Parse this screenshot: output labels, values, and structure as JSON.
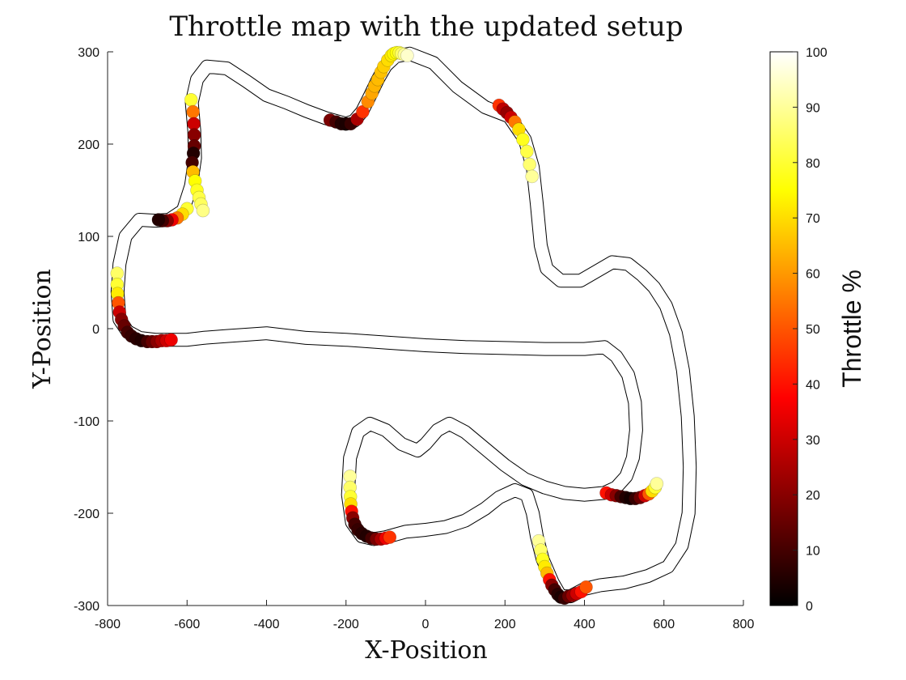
{
  "chart_data": {
    "type": "scatter",
    "title": "Throttle map with the updated setup",
    "xlabel": "X-Position",
    "ylabel": "Y-Position",
    "xlim": [
      -800,
      800
    ],
    "ylim": [
      -300,
      300
    ],
    "xticks": [
      -800,
      -600,
      -400,
      -200,
      0,
      200,
      400,
      600,
      800
    ],
    "yticks": [
      -300,
      -200,
      -100,
      0,
      100,
      200,
      300
    ],
    "grid": false,
    "colormap": "hot",
    "colorbar": {
      "label": "Throttle %",
      "range": [
        0,
        100
      ],
      "ticks": [
        0,
        10,
        20,
        30,
        40,
        50,
        60,
        70,
        80,
        90,
        100
      ]
    },
    "track_centerline": [
      [
        -40,
        298
      ],
      [
        20,
        288
      ],
      [
        80,
        262
      ],
      [
        150,
        240
      ],
      [
        210,
        230
      ],
      [
        250,
        205
      ],
      [
        270,
        175
      ],
      [
        280,
        135
      ],
      [
        290,
        90
      ],
      [
        305,
        65
      ],
      [
        340,
        52
      ],
      [
        390,
        52
      ],
      [
        430,
        62
      ],
      [
        470,
        72
      ],
      [
        510,
        70
      ],
      [
        545,
        58
      ],
      [
        575,
        45
      ],
      [
        605,
        25
      ],
      [
        630,
        -5
      ],
      [
        648,
        -45
      ],
      [
        660,
        -95
      ],
      [
        665,
        -150
      ],
      [
        662,
        -200
      ],
      [
        645,
        -235
      ],
      [
        610,
        -258
      ],
      [
        560,
        -268
      ],
      [
        500,
        -275
      ],
      [
        440,
        -278
      ],
      [
        400,
        -282
      ],
      [
        365,
        -290
      ],
      [
        340,
        -290
      ],
      [
        320,
        -275
      ],
      [
        295,
        -250
      ],
      [
        280,
        -225
      ],
      [
        270,
        -200
      ],
      [
        255,
        -180
      ],
      [
        225,
        -175
      ],
      [
        185,
        -183
      ],
      [
        150,
        -195
      ],
      [
        100,
        -208
      ],
      [
        50,
        -215
      ],
      [
        0,
        -218
      ],
      [
        -50,
        -220
      ],
      [
        -100,
        -226
      ],
      [
        -130,
        -228
      ],
      [
        -160,
        -225
      ],
      [
        -185,
        -210
      ],
      [
        -195,
        -180
      ],
      [
        -190,
        -140
      ],
      [
        -170,
        -112
      ],
      [
        -140,
        -103
      ],
      [
        -100,
        -110
      ],
      [
        -60,
        -125
      ],
      [
        -20,
        -132
      ],
      [
        0,
        -125
      ],
      [
        30,
        -110
      ],
      [
        60,
        -103
      ],
      [
        100,
        -112
      ],
      [
        150,
        -130
      ],
      [
        200,
        -148
      ],
      [
        250,
        -163
      ],
      [
        300,
        -172
      ],
      [
        350,
        -178
      ],
      [
        400,
        -180
      ],
      [
        450,
        -178
      ],
      [
        480,
        -172
      ],
      [
        505,
        -160
      ],
      [
        522,
        -140
      ],
      [
        530,
        -110
      ],
      [
        527,
        -80
      ],
      [
        510,
        -50
      ],
      [
        480,
        -30
      ],
      [
        450,
        -20
      ],
      [
        400,
        -22
      ],
      [
        300,
        -22
      ],
      [
        200,
        -21
      ],
      [
        100,
        -20
      ],
      [
        0,
        -18
      ],
      [
        -100,
        -15
      ],
      [
        -200,
        -12
      ],
      [
        -300,
        -10
      ],
      [
        -400,
        -5
      ],
      [
        -500,
        -8
      ],
      [
        -560,
        -10
      ],
      [
        -600,
        -12
      ],
      [
        -640,
        -12
      ],
      [
        -680,
        -12
      ],
      [
        -720,
        -10
      ],
      [
        -750,
        -3
      ],
      [
        -770,
        10
      ],
      [
        -775,
        40
      ],
      [
        -770,
        70
      ],
      [
        -755,
        100
      ],
      [
        -720,
        118
      ],
      [
        -680,
        117
      ],
      [
        -645,
        118
      ],
      [
        -610,
        128
      ],
      [
        -590,
        155
      ],
      [
        -580,
        185
      ],
      [
        -582,
        215
      ],
      [
        -588,
        245
      ],
      [
        -575,
        270
      ],
      [
        -550,
        284
      ],
      [
        -500,
        282
      ],
      [
        -450,
        268
      ],
      [
        -400,
        253
      ],
      [
        -350,
        245
      ],
      [
        -300,
        236
      ],
      [
        -250,
        228
      ],
      [
        -200,
        222
      ],
      [
        -180,
        225
      ],
      [
        -160,
        235
      ],
      [
        -140,
        252
      ],
      [
        -120,
        270
      ],
      [
        -100,
        285
      ],
      [
        -75,
        295
      ],
      [
        -40,
        298
      ]
    ],
    "series": [
      {
        "x": [
          -240,
          -225,
          -212,
          -200,
          -188,
          -172,
          -158,
          -145,
          -135,
          -128,
          -120,
          -112,
          -105,
          -95,
          -86,
          -80,
          -73,
          -66,
          -60,
          -53,
          -46
        ],
        "y": [
          226,
          224,
          222,
          222,
          222,
          227,
          235,
          246,
          255,
          263,
          270,
          278,
          284,
          291,
          296,
          298,
          299,
          299,
          298,
          297,
          296
        ],
        "throttle": [
          18,
          10,
          5,
          4,
          8,
          25,
          45,
          58,
          62,
          64,
          65,
          66,
          68,
          70,
          72,
          74,
          76,
          80,
          85,
          90,
          95
        ]
      },
      {
        "x": [
          185,
          195,
          205,
          215,
          225,
          235,
          245,
          255,
          262,
          268
        ],
        "y": [
          242,
          238,
          234,
          229,
          224,
          216,
          205,
          192,
          178,
          165
        ],
        "throttle": [
          45,
          28,
          22,
          30,
          55,
          70,
          78,
          82,
          86,
          90
        ]
      },
      {
        "x": [
          -590,
          -585,
          -583,
          -582,
          -582,
          -584,
          -587,
          -585,
          -580,
          -575,
          -570,
          -565,
          -560
        ],
        "y": [
          248,
          235,
          222,
          210,
          198,
          190,
          180,
          170,
          160,
          150,
          142,
          135,
          128
        ],
        "throttle": [
          80,
          55,
          30,
          20,
          15,
          5,
          10,
          65,
          75,
          78,
          82,
          84,
          88
        ]
      },
      {
        "x": [
          -600,
          -612,
          -625,
          -638,
          -650,
          -662,
          -672
        ],
        "y": [
          130,
          124,
          120,
          118,
          117,
          117,
          118
        ],
        "throttle": [
          80,
          70,
          55,
          35,
          20,
          10,
          5
        ]
      },
      {
        "x": [
          -776,
          -776,
          -775,
          -773,
          -770,
          -765,
          -758,
          -750,
          -740,
          -728,
          -715,
          -700,
          -688,
          -676,
          -664,
          -652,
          -640
        ],
        "y": [
          60,
          48,
          38,
          28,
          18,
          10,
          3,
          -4,
          -8,
          -11,
          -13,
          -14,
          -14,
          -14,
          -13,
          -13,
          -12
        ],
        "throttle": [
          85,
          80,
          72,
          50,
          30,
          20,
          15,
          10,
          8,
          6,
          5,
          10,
          15,
          20,
          25,
          30,
          35
        ]
      },
      {
        "x": [
          -190,
          -190,
          -189,
          -188,
          -186,
          -183,
          -178,
          -170,
          -160,
          -148,
          -136,
          -124,
          -112,
          -100,
          -90
        ],
        "y": [
          -160,
          -172,
          -182,
          -190,
          -198,
          -205,
          -212,
          -218,
          -222,
          -225,
          -227,
          -228,
          -228,
          -227,
          -226
        ],
        "throttle": [
          90,
          85,
          80,
          70,
          40,
          20,
          10,
          8,
          6,
          5,
          10,
          18,
          25,
          35,
          45
        ]
      },
      {
        "x": [
          285,
          290,
          295,
          300,
          306,
          312,
          318,
          325,
          333,
          341,
          350,
          360,
          370,
          380,
          392,
          404
        ],
        "y": [
          -230,
          -240,
          -250,
          -258,
          -265,
          -272,
          -278,
          -283,
          -288,
          -291,
          -292,
          -290,
          -289,
          -287,
          -285,
          -280
        ],
        "throttle": [
          90,
          85,
          78,
          72,
          65,
          40,
          20,
          10,
          6,
          4,
          8,
          15,
          22,
          30,
          40,
          50
        ]
      },
      {
        "x": [
          455,
          468,
          480,
          492,
          504,
          516,
          528,
          540,
          552,
          562,
          570,
          578,
          582
        ],
        "y": [
          -178,
          -180,
          -181,
          -182,
          -183,
          -184,
          -184,
          -183,
          -181,
          -179,
          -176,
          -172,
          -168
        ],
        "throttle": [
          40,
          30,
          20,
          10,
          5,
          3,
          8,
          15,
          30,
          50,
          70,
          80,
          90
        ]
      }
    ]
  }
}
